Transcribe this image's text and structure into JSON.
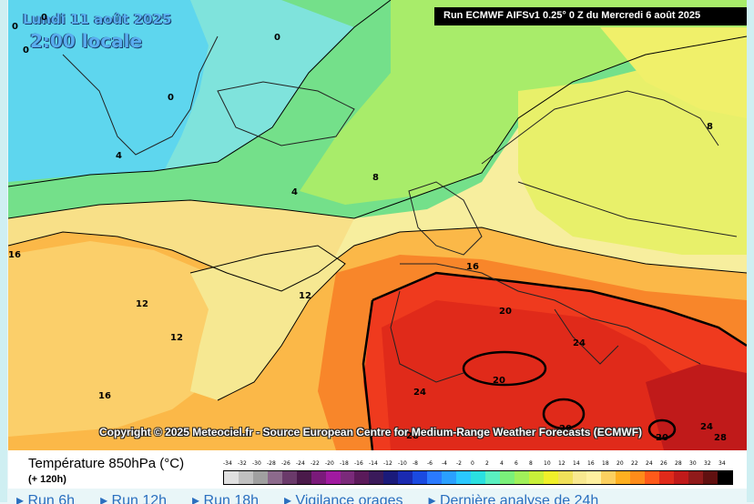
{
  "map": {
    "date_text": "Lundi 11 août 2025",
    "time_text": "2:00 locale",
    "run_text": "Run ECMWF AIFSv1 0.25° 0 Z du Mercredi 6 août 2025",
    "copyright_text": "Copyright © 2025 Meteociel.fr - Source European Centre for Medium-Range Weather Forecasts (ECMWF)",
    "contour_labels": [
      "0",
      "0",
      "0",
      "0",
      "0",
      "4",
      "4",
      "8",
      "8",
      "12",
      "12",
      "12",
      "16",
      "16",
      "16",
      "20",
      "20",
      "20",
      "20",
      "24",
      "24",
      "24",
      "28",
      "28"
    ]
  },
  "legend": {
    "title": "Température 850hPa (°C)",
    "subtitle": "(+ 120h)",
    "scale_values": [
      "-34",
      "-32",
      "-30",
      "-28",
      "-26",
      "-24",
      "-22",
      "-20",
      "-18",
      "-16",
      "-14",
      "-12",
      "-10",
      "-8",
      "-6",
      "-4",
      "-2",
      "0",
      "2",
      "4",
      "6",
      "8",
      "10",
      "12",
      "14",
      "16",
      "18",
      "20",
      "22",
      "24",
      "26",
      "28",
      "30",
      "32",
      "34"
    ],
    "scale_colors": [
      "#e0e0e0",
      "#c0c0c0",
      "#a0a0a0",
      "#8c6a8c",
      "#6a3a6a",
      "#4a1a4a",
      "#7a1a7a",
      "#a01aa0",
      "#7a2a7a",
      "#5a1a5a",
      "#3a1a5a",
      "#1a1a7a",
      "#1a2ab0",
      "#1a4ae0",
      "#2a7aff",
      "#2aa0ff",
      "#2ac8ff",
      "#2ae0e0",
      "#5af0c0",
      "#7af07a",
      "#a0f05a",
      "#c8f03a",
      "#f0f02a",
      "#f0e05a",
      "#f8e890",
      "#fff0a0",
      "#fcd060",
      "#ffb020",
      "#ff8c1a",
      "#ff5a1a",
      "#e02a1a",
      "#c01a1a",
      "#901a1a",
      "#601010",
      "#000000"
    ]
  },
  "links": [
    "Run 6h",
    "Run 12h",
    "Run 18h",
    "Vigilance orages",
    "Dernière analyse de 24h"
  ]
}
